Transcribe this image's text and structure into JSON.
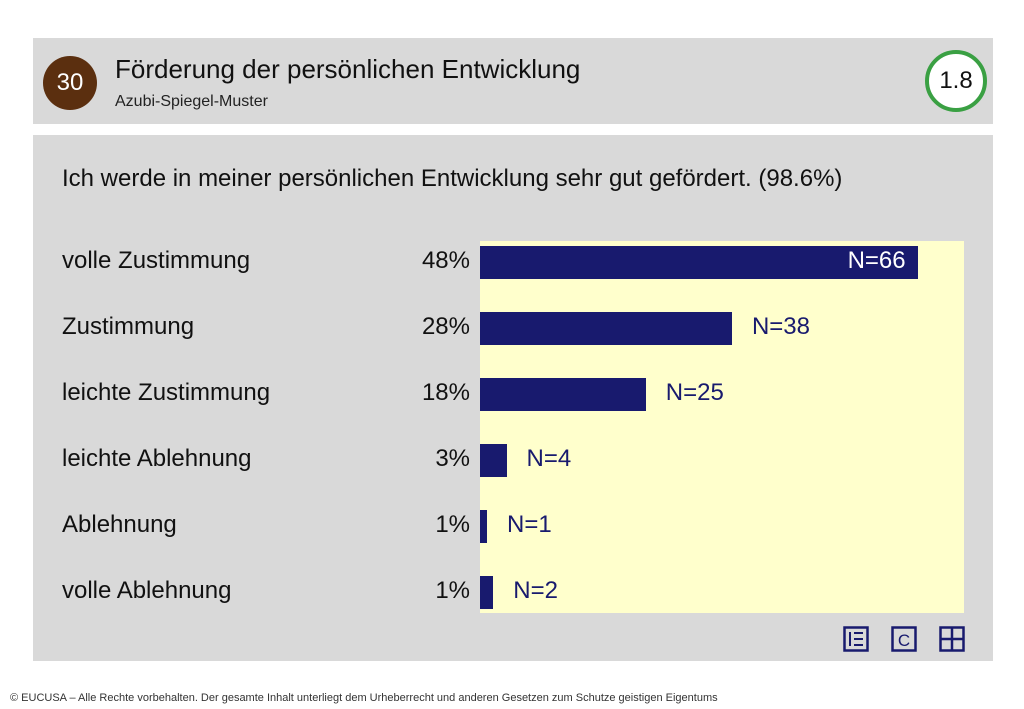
{
  "header": {
    "badge_number": "30",
    "title": "Förderung der persönlichen Entwicklung",
    "subtitle": "Azubi-Spiegel-Muster",
    "score": "1.8",
    "score_color": "#3aa043",
    "badge_color": "#5b2f0f"
  },
  "question": "Ich werde in meiner persönlichen Entwicklung sehr gut gefördert. (98.6%)",
  "chart_data": {
    "type": "bar",
    "orientation": "horizontal",
    "categories": [
      "volle Zustimmung",
      "Zustimmung",
      "leichte Zustimmung",
      "leichte Ablehnung",
      "Ablehnung",
      "volle Ablehnung"
    ],
    "percent_labels": [
      "48%",
      "28%",
      "18%",
      "3%",
      "1%",
      "1%"
    ],
    "values": [
      66,
      38,
      25,
      4,
      1,
      2
    ],
    "n_labels": [
      "N=66",
      "N=38",
      "N=25",
      "N=4",
      "N=1",
      "N=2"
    ],
    "xlim": [
      0,
      73
    ],
    "bar_color": "#181a6e",
    "background_color": "#ffffcc",
    "grid": false
  },
  "toolbar": {
    "icons": [
      "list-icon",
      "c-icon",
      "grid-icon"
    ]
  },
  "footer": "© EUCUSA – Alle Rechte vorbehalten. Der gesamte Inhalt unterliegt dem Urheberrecht und anderen Gesetzen zum Schutze geistigen Eigentums"
}
